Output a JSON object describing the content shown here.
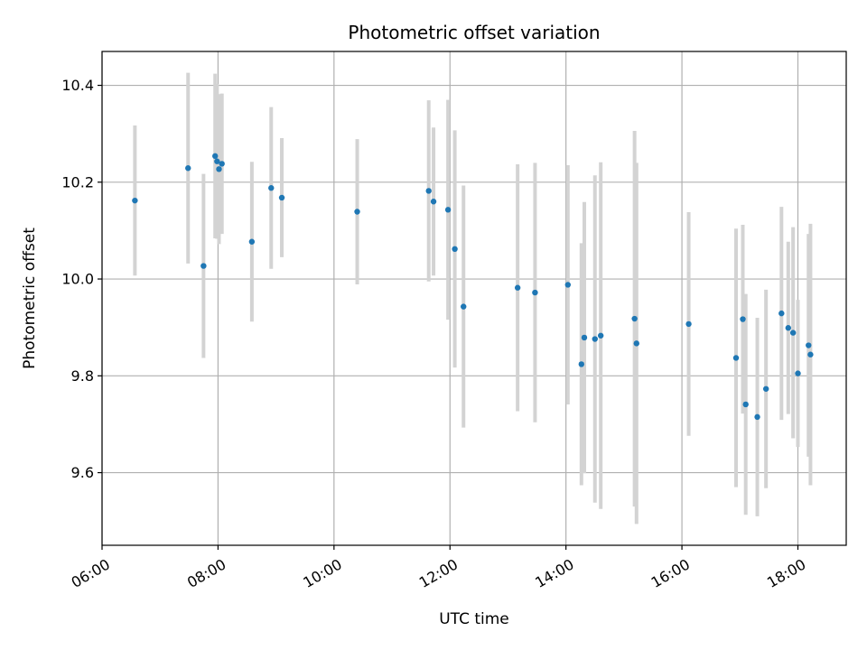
{
  "chart_data": {
    "type": "scatter",
    "title": "Photometric offset variation",
    "xlabel": "UTC time",
    "ylabel": "Photometric offset",
    "x_ticks": [
      "06:00",
      "08:00",
      "10:00",
      "12:00",
      "14:00",
      "16:00",
      "18:00"
    ],
    "y_ticks": [
      "9.6",
      "9.8",
      "10.0",
      "10.2",
      "10.4"
    ],
    "xlim": [
      "06:00",
      "18:50"
    ],
    "ylim": [
      9.45,
      10.47
    ],
    "grid": true,
    "legend": "none",
    "point_color": "#1f77b4",
    "errorbar_color": "#d3d3d3",
    "points": [
      {
        "x": "06:34",
        "y": 10.162,
        "err": 0.155
      },
      {
        "x": "07:29",
        "y": 10.229,
        "err": 0.197
      },
      {
        "x": "07:45",
        "y": 10.027,
        "err": 0.19
      },
      {
        "x": "07:57",
        "y": 10.254,
        "err": 0.17
      },
      {
        "x": "07:59",
        "y": 10.243,
        "err": 0.16
      },
      {
        "x": "08:01",
        "y": 10.227,
        "err": 0.155
      },
      {
        "x": "08:04",
        "y": 10.238,
        "err": 0.145
      },
      {
        "x": "08:35",
        "y": 10.077,
        "err": 0.165
      },
      {
        "x": "08:55",
        "y": 10.188,
        "err": 0.167
      },
      {
        "x": "09:06",
        "y": 10.168,
        "err": 0.123
      },
      {
        "x": "10:24",
        "y": 10.139,
        "err": 0.15
      },
      {
        "x": "11:38",
        "y": 10.182,
        "err": 0.187
      },
      {
        "x": "11:43",
        "y": 10.16,
        "err": 0.153
      },
      {
        "x": "11:58",
        "y": 10.143,
        "err": 0.227
      },
      {
        "x": "12:05",
        "y": 10.062,
        "err": 0.245
      },
      {
        "x": "12:14",
        "y": 9.943,
        "err": 0.25
      },
      {
        "x": "13:10",
        "y": 9.982,
        "err": 0.255
      },
      {
        "x": "13:28",
        "y": 9.972,
        "err": 0.268
      },
      {
        "x": "14:02",
        "y": 9.988,
        "err": 0.247
      },
      {
        "x": "14:16",
        "y": 9.824,
        "err": 0.25
      },
      {
        "x": "14:19",
        "y": 9.879,
        "err": 0.28
      },
      {
        "x": "14:30",
        "y": 9.876,
        "err": 0.338
      },
      {
        "x": "14:36",
        "y": 9.883,
        "err": 0.358
      },
      {
        "x": "15:11",
        "y": 9.918,
        "err": 0.388
      },
      {
        "x": "15:13",
        "y": 9.867,
        "err": 0.373
      },
      {
        "x": "16:07",
        "y": 9.907,
        "err": 0.231
      },
      {
        "x": "16:56",
        "y": 9.837,
        "err": 0.267
      },
      {
        "x": "17:03",
        "y": 9.917,
        "err": 0.195
      },
      {
        "x": "17:06",
        "y": 9.741,
        "err": 0.228
      },
      {
        "x": "17:18",
        "y": 9.715,
        "err": 0.205
      },
      {
        "x": "17:27",
        "y": 9.773,
        "err": 0.205
      },
      {
        "x": "17:43",
        "y": 9.929,
        "err": 0.22
      },
      {
        "x": "17:50",
        "y": 9.899,
        "err": 0.178
      },
      {
        "x": "17:55",
        "y": 9.889,
        "err": 0.218
      },
      {
        "x": "18:00",
        "y": 9.805,
        "err": 0.152
      },
      {
        "x": "18:11",
        "y": 9.863,
        "err": 0.23
      },
      {
        "x": "18:13",
        "y": 9.844,
        "err": 0.27
      }
    ]
  }
}
